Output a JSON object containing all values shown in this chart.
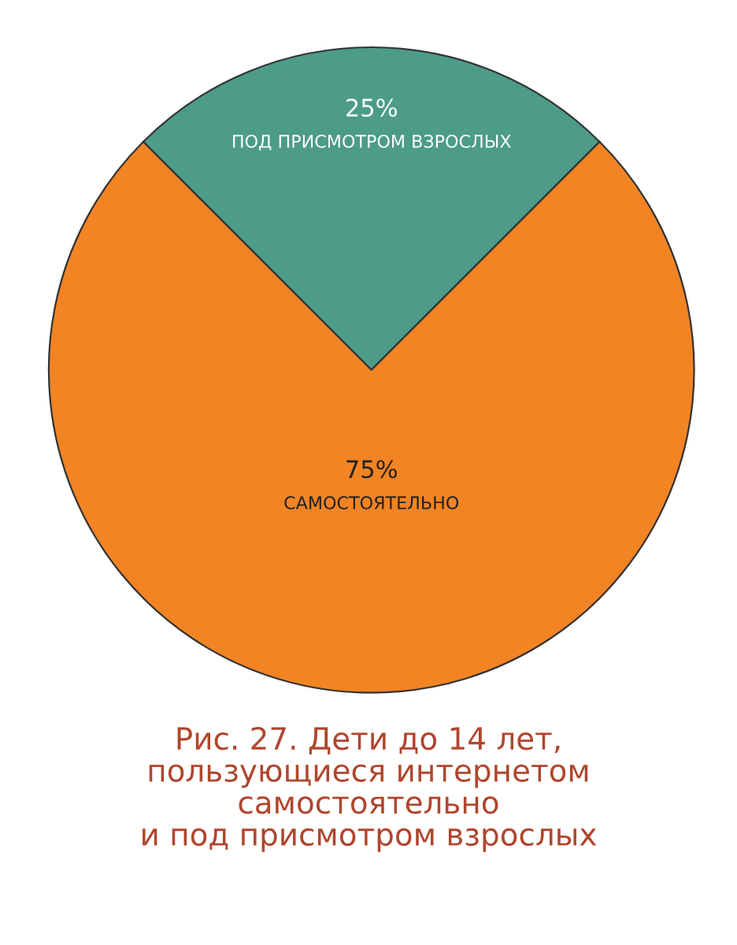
{
  "chart_data": {
    "type": "pie",
    "title": "Рис. 27. Дети до 14 лет,\nпользующиеся интернетом\nсамостоятельно\nи под присмотром взрослых",
    "categories": [
      "ПОД ПРИСМОТРОМ ВЗРОСЛЫХ",
      "САМОСТОЯТЕЛЬНО"
    ],
    "values": [
      25,
      75
    ],
    "colors": [
      "#4c9c88",
      "#f28424"
    ],
    "value_labels": [
      "25%",
      "75%"
    ]
  }
}
